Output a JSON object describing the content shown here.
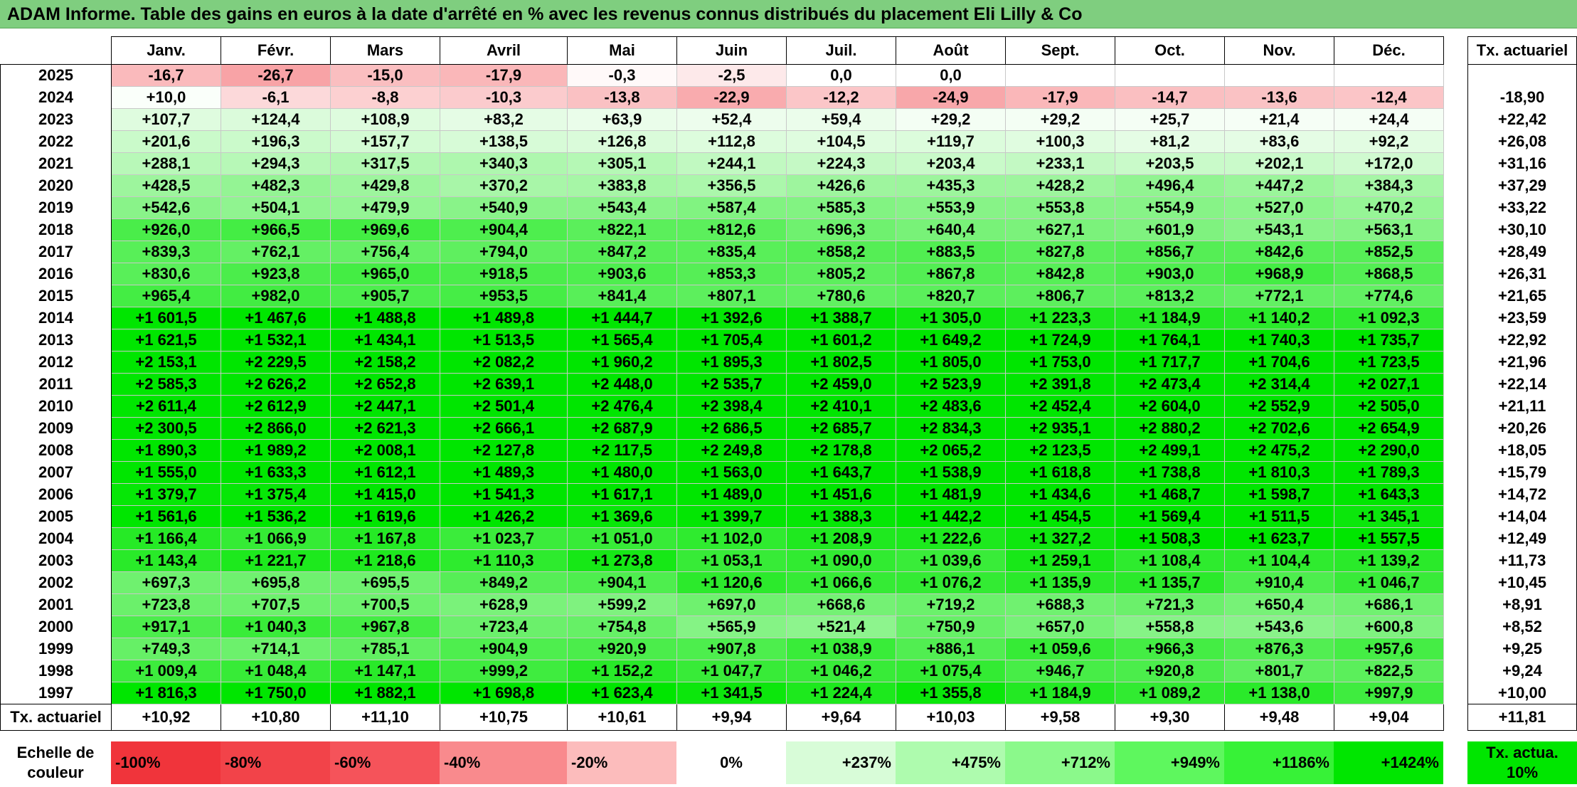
{
  "title": "ADAM Informe. Table des gains en euros à la date d'arrêté en % avec les revenus connus distribués du placement Eli Lilly & Co",
  "months": [
    "Janv.",
    "Févr.",
    "Mars",
    "Avril",
    "Mai",
    "Juin",
    "Juil.",
    "Août",
    "Sept.",
    "Oct.",
    "Nov.",
    "Déc."
  ],
  "tx_header": "Tx. actuariel",
  "rows": [
    {
      "year": "2025",
      "values": [
        "-16,7",
        "-26,7",
        "-15,0",
        "-17,9",
        "-0,3",
        "-2,5",
        "0,0",
        "0,0",
        "",
        "",
        "",
        ""
      ],
      "tx": ""
    },
    {
      "year": "2024",
      "values": [
        "+10,0",
        "-6,1",
        "-8,8",
        "-10,3",
        "-13,8",
        "-22,9",
        "-12,2",
        "-24,9",
        "-17,9",
        "-14,7",
        "-13,6",
        "-12,4"
      ],
      "tx": "-18,90"
    },
    {
      "year": "2023",
      "values": [
        "+107,7",
        "+124,4",
        "+108,9",
        "+83,2",
        "+63,9",
        "+52,4",
        "+59,4",
        "+29,2",
        "+29,2",
        "+25,7",
        "+21,4",
        "+24,4"
      ],
      "tx": "+22,42"
    },
    {
      "year": "2022",
      "values": [
        "+201,6",
        "+196,3",
        "+157,7",
        "+138,5",
        "+126,8",
        "+112,8",
        "+104,5",
        "+119,7",
        "+100,3",
        "+81,2",
        "+83,6",
        "+92,2"
      ],
      "tx": "+26,08"
    },
    {
      "year": "2021",
      "values": [
        "+288,1",
        "+294,3",
        "+317,5",
        "+340,3",
        "+305,1",
        "+244,1",
        "+224,3",
        "+203,4",
        "+233,1",
        "+203,5",
        "+202,1",
        "+172,0"
      ],
      "tx": "+31,16"
    },
    {
      "year": "2020",
      "values": [
        "+428,5",
        "+482,3",
        "+429,8",
        "+370,2",
        "+383,8",
        "+356,5",
        "+426,6",
        "+435,3",
        "+428,2",
        "+496,4",
        "+447,2",
        "+384,3"
      ],
      "tx": "+37,29"
    },
    {
      "year": "2019",
      "values": [
        "+542,6",
        "+504,1",
        "+479,9",
        "+540,9",
        "+543,4",
        "+587,4",
        "+585,3",
        "+553,9",
        "+553,8",
        "+554,9",
        "+527,0",
        "+470,2"
      ],
      "tx": "+33,22"
    },
    {
      "year": "2018",
      "values": [
        "+926,0",
        "+966,5",
        "+969,6",
        "+904,4",
        "+822,1",
        "+812,6",
        "+696,3",
        "+640,4",
        "+627,1",
        "+601,9",
        "+543,1",
        "+563,1"
      ],
      "tx": "+30,10"
    },
    {
      "year": "2017",
      "values": [
        "+839,3",
        "+762,1",
        "+756,4",
        "+794,0",
        "+847,2",
        "+835,4",
        "+858,2",
        "+883,5",
        "+827,8",
        "+856,7",
        "+842,6",
        "+852,5"
      ],
      "tx": "+28,49"
    },
    {
      "year": "2016",
      "values": [
        "+830,6",
        "+923,8",
        "+965,0",
        "+918,5",
        "+903,6",
        "+853,3",
        "+805,2",
        "+867,8",
        "+842,8",
        "+903,0",
        "+968,9",
        "+868,5"
      ],
      "tx": "+26,31"
    },
    {
      "year": "2015",
      "values": [
        "+965,4",
        "+982,0",
        "+905,7",
        "+953,5",
        "+841,4",
        "+807,1",
        "+780,6",
        "+820,7",
        "+806,7",
        "+813,2",
        "+772,1",
        "+774,6"
      ],
      "tx": "+21,65"
    },
    {
      "year": "2014",
      "values": [
        "+1 601,5",
        "+1 467,6",
        "+1 488,8",
        "+1 489,8",
        "+1 444,7",
        "+1 392,6",
        "+1 388,7",
        "+1 305,0",
        "+1 223,3",
        "+1 184,9",
        "+1 140,2",
        "+1 092,3"
      ],
      "tx": "+23,59"
    },
    {
      "year": "2013",
      "values": [
        "+1 621,5",
        "+1 532,1",
        "+1 434,1",
        "+1 513,5",
        "+1 565,4",
        "+1 705,4",
        "+1 601,2",
        "+1 649,2",
        "+1 724,9",
        "+1 764,1",
        "+1 740,3",
        "+1 735,7"
      ],
      "tx": "+22,92"
    },
    {
      "year": "2012",
      "values": [
        "+2 153,1",
        "+2 229,5",
        "+2 158,2",
        "+2 082,2",
        "+1 960,2",
        "+1 895,3",
        "+1 802,5",
        "+1 805,0",
        "+1 753,0",
        "+1 717,7",
        "+1 704,6",
        "+1 723,5"
      ],
      "tx": "+21,96"
    },
    {
      "year": "2011",
      "values": [
        "+2 585,3",
        "+2 626,2",
        "+2 652,8",
        "+2 639,1",
        "+2 448,0",
        "+2 535,7",
        "+2 459,0",
        "+2 523,9",
        "+2 391,8",
        "+2 473,4",
        "+2 314,4",
        "+2 027,1"
      ],
      "tx": "+22,14"
    },
    {
      "year": "2010",
      "values": [
        "+2 611,4",
        "+2 612,9",
        "+2 447,1",
        "+2 501,4",
        "+2 476,4",
        "+2 398,4",
        "+2 410,1",
        "+2 483,6",
        "+2 452,4",
        "+2 604,0",
        "+2 552,9",
        "+2 505,0"
      ],
      "tx": "+21,11"
    },
    {
      "year": "2009",
      "values": [
        "+2 300,5",
        "+2 866,0",
        "+2 621,3",
        "+2 666,1",
        "+2 687,9",
        "+2 686,5",
        "+2 685,7",
        "+2 834,3",
        "+2 935,1",
        "+2 880,2",
        "+2 702,6",
        "+2 654,9"
      ],
      "tx": "+20,26"
    },
    {
      "year": "2008",
      "values": [
        "+1 890,3",
        "+1 989,2",
        "+2 008,1",
        "+2 127,8",
        "+2 117,5",
        "+2 249,8",
        "+2 178,8",
        "+2 065,2",
        "+2 123,5",
        "+2 499,1",
        "+2 475,2",
        "+2 290,0"
      ],
      "tx": "+18,05"
    },
    {
      "year": "2007",
      "values": [
        "+1 555,0",
        "+1 633,3",
        "+1 612,1",
        "+1 489,3",
        "+1 480,0",
        "+1 563,0",
        "+1 643,7",
        "+1 538,9",
        "+1 618,8",
        "+1 738,8",
        "+1 810,3",
        "+1 789,3"
      ],
      "tx": "+15,79"
    },
    {
      "year": "2006",
      "values": [
        "+1 379,7",
        "+1 375,4",
        "+1 415,0",
        "+1 541,3",
        "+1 617,1",
        "+1 489,0",
        "+1 451,6",
        "+1 481,9",
        "+1 434,6",
        "+1 468,7",
        "+1 598,7",
        "+1 643,3"
      ],
      "tx": "+14,72"
    },
    {
      "year": "2005",
      "values": [
        "+1 561,6",
        "+1 536,2",
        "+1 619,6",
        "+1 426,2",
        "+1 369,6",
        "+1 399,7",
        "+1 388,3",
        "+1 442,2",
        "+1 454,5",
        "+1 569,4",
        "+1 511,5",
        "+1 345,1"
      ],
      "tx": "+14,04"
    },
    {
      "year": "2004",
      "values": [
        "+1 166,4",
        "+1 066,9",
        "+1 167,8",
        "+1 023,7",
        "+1 051,0",
        "+1 102,0",
        "+1 208,9",
        "+1 222,6",
        "+1 327,2",
        "+1 508,3",
        "+1 623,7",
        "+1 557,5"
      ],
      "tx": "+12,49"
    },
    {
      "year": "2003",
      "values": [
        "+1 143,4",
        "+1 221,7",
        "+1 218,6",
        "+1 110,3",
        "+1 273,8",
        "+1 053,1",
        "+1 090,0",
        "+1 039,6",
        "+1 259,1",
        "+1 108,4",
        "+1 104,4",
        "+1 139,2"
      ],
      "tx": "+11,73"
    },
    {
      "year": "2002",
      "values": [
        "+697,3",
        "+695,8",
        "+695,5",
        "+849,2",
        "+904,1",
        "+1 120,6",
        "+1 066,6",
        "+1 076,2",
        "+1 135,9",
        "+1 135,7",
        "+910,4",
        "+1 046,7"
      ],
      "tx": "+10,45"
    },
    {
      "year": "2001",
      "values": [
        "+723,8",
        "+707,5",
        "+700,5",
        "+628,9",
        "+599,2",
        "+697,0",
        "+668,6",
        "+719,2",
        "+688,3",
        "+721,3",
        "+650,4",
        "+686,1"
      ],
      "tx": "+8,91"
    },
    {
      "year": "2000",
      "values": [
        "+917,1",
        "+1 040,3",
        "+967,8",
        "+723,4",
        "+754,8",
        "+565,9",
        "+521,4",
        "+750,9",
        "+657,0",
        "+558,8",
        "+543,6",
        "+600,8"
      ],
      "tx": "+8,52"
    },
    {
      "year": "1999",
      "values": [
        "+749,3",
        "+714,1",
        "+785,1",
        "+904,9",
        "+920,9",
        "+907,8",
        "+1 038,9",
        "+886,1",
        "+1 059,6",
        "+966,3",
        "+876,3",
        "+957,6"
      ],
      "tx": "+9,25"
    },
    {
      "year": "1998",
      "values": [
        "+1 009,4",
        "+1 048,4",
        "+1 147,1",
        "+999,2",
        "+1 152,2",
        "+1 047,7",
        "+1 046,2",
        "+1 075,4",
        "+946,7",
        "+920,8",
        "+801,7",
        "+822,5"
      ],
      "tx": "+9,24"
    },
    {
      "year": "1997",
      "values": [
        "+1 816,3",
        "+1 750,0",
        "+1 882,1",
        "+1 698,8",
        "+1 623,4",
        "+1 341,5",
        "+1 224,4",
        "+1 355,8",
        "+1 184,9",
        "+1 089,2",
        "+1 138,0",
        "+997,9"
      ],
      "tx": "+10,00"
    }
  ],
  "footer": {
    "label": "Tx. actuariel",
    "values": [
      "+10,92",
      "+10,80",
      "+11,10",
      "+10,75",
      "+10,61",
      "+9,94",
      "+9,64",
      "+10,03",
      "+9,58",
      "+9,30",
      "+9,48",
      "+9,04"
    ],
    "tx": "+11,81"
  },
  "legend": {
    "label": "Echelle de couleur",
    "steps": [
      {
        "text": "-100%",
        "color": "#f0343b"
      },
      {
        "text": "-80%",
        "color": "#f24349"
      },
      {
        "text": "-60%",
        "color": "#f5535a"
      },
      {
        "text": "-40%",
        "color": "#f98a8d"
      },
      {
        "text": "-20%",
        "color": "#fcbcbc"
      },
      {
        "text": "0%",
        "color": "#ffffff"
      },
      {
        "text": "+237%",
        "color": "#d8fcd8"
      },
      {
        "text": "+475%",
        "color": "#aefbae"
      },
      {
        "text": "+712%",
        "color": "#8bf98b"
      },
      {
        "text": "+949%",
        "color": "#5ef75e"
      },
      {
        "text": "+1186%",
        "color": "#37f237"
      },
      {
        "text": "+1424%",
        "color": "#00e600"
      }
    ],
    "tx_label": "Tx. actua. 10%",
    "tx_color": "#00e600"
  }
}
